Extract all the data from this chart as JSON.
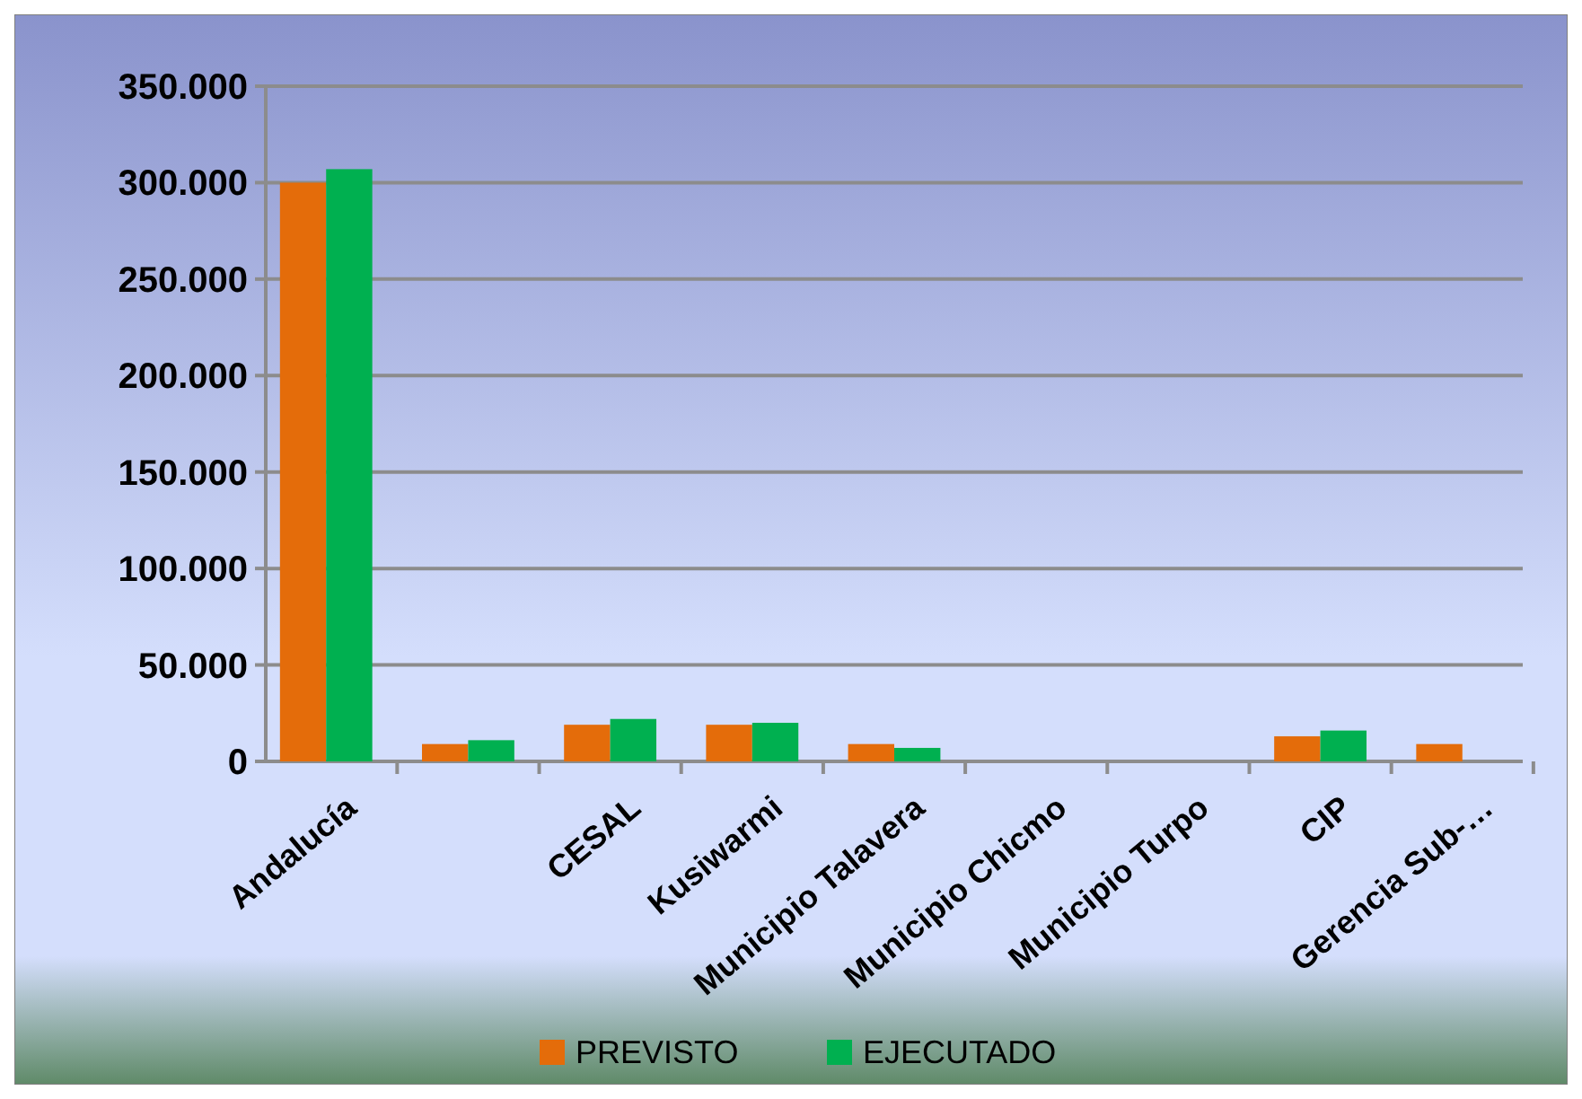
{
  "chart_data": {
    "type": "bar",
    "categories": [
      "Andalucía",
      null,
      "CESAL",
      "Kusiwarmi",
      "Municipio Talavera",
      "Municipio Chicmo",
      "Municipio Turpo",
      "CIP",
      "Gerencia Sub-…"
    ],
    "series": [
      {
        "name": "PREVISTO",
        "color": "#e46c0a",
        "values": [
          300000,
          9000,
          19000,
          19000,
          9000,
          0,
          0,
          13000,
          9000
        ]
      },
      {
        "name": "EJECUTADO",
        "color": "#00b050",
        "values": [
          307000,
          11000,
          22000,
          20000,
          7000,
          0,
          0,
          16000,
          0
        ]
      }
    ],
    "ylim": [
      0,
      350000
    ],
    "yticks": [
      {
        "value": 0,
        "label": "0"
      },
      {
        "value": 50000,
        "label": "50.000"
      },
      {
        "value": 100000,
        "label": "100.000"
      },
      {
        "value": 150000,
        "label": "150.000"
      },
      {
        "value": 200000,
        "label": "200.000"
      },
      {
        "value": 250000,
        "label": "250.000"
      },
      {
        "value": 300000,
        "label": "300.000"
      },
      {
        "value": 350000,
        "label": "350.000"
      }
    ],
    "grid": "y",
    "legend": "bottom"
  }
}
